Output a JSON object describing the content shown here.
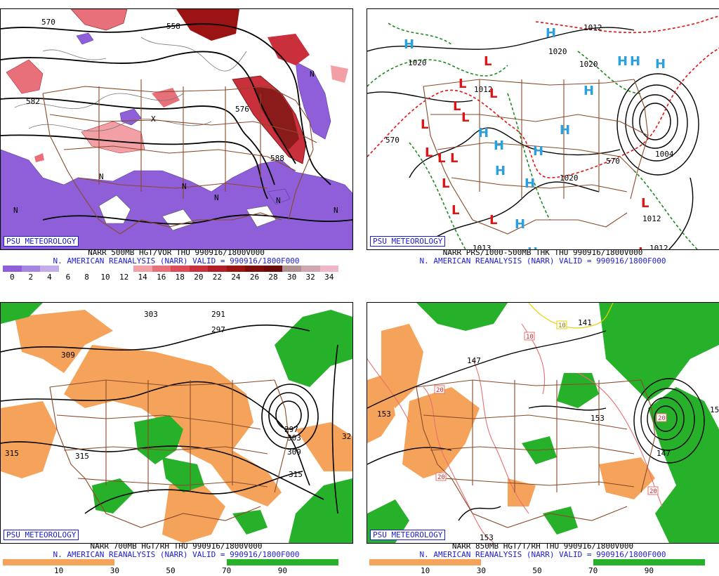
{
  "credit": "PSU METEOROLOGY",
  "colors": {
    "vort_low": "#9b6cde",
    "vort_high": "#e8707a",
    "vort_dark": "#8b1a1a",
    "rh_dry": "#f5a35a",
    "rh_moist": "#27b12b",
    "high_symbol": "#2aa0e0",
    "low_symbol": "#e01414",
    "thickness_warm": "#e01414",
    "thickness_cold": "#1f8a1f",
    "height_contour": "#000000",
    "border": "#8a4a2a"
  },
  "panels": [
    {
      "line1": "NARR 500MB HGT/VOR THU 990916/1800V000",
      "line2": "N. AMERICAN REANALYSIS (NARR) VALID = 990916/1800F000",
      "scale": {
        "ticks": [
          "0",
          "2",
          "4",
          "6",
          "8",
          "10",
          "12",
          "14",
          "16",
          "18",
          "20",
          "22",
          "24",
          "26",
          "28",
          "30",
          "32",
          "34"
        ],
        "colors": [
          "#8e5fd8",
          "#a684e2",
          "#c2ade9",
          "#ffffff",
          "#ffffff",
          "#ffffff",
          "#ffffff",
          "#f2a0a6",
          "#e8707a",
          "#de4b57",
          "#c9303c",
          "#b21e28",
          "#9a1414",
          "#7e0e0e",
          "#6a0a0a",
          "#b09090",
          "#cfa5b0",
          "#f0b7c8"
        ]
      },
      "labels": [
        "570",
        "558",
        "582",
        "576",
        "588",
        "N",
        "N",
        "N",
        "N",
        "N",
        "N",
        "N",
        "X"
      ]
    },
    {
      "line1": "NARR PRS/1000-500MB THK THU 990916/1800V000",
      "line2": "N. AMERICAN REANALYSIS (NARR) VALID = 990916/1800F000",
      "highs_label": "H",
      "lows_label": "L",
      "labels": [
        "1012",
        "1020",
        "1020",
        "1012",
        "1020",
        "1020",
        "1004",
        "1012",
        "1012",
        "1013",
        "570",
        "570"
      ]
    },
    {
      "line1": "NARR 700MB HGT/RH THU 990916/1800V000",
      "line2": "N. AMERICAN REANALYSIS (NARR) VALID = 990916/1800F000",
      "scale": {
        "ticks": [
          "10",
          "30",
          "50",
          "70",
          "90"
        ],
        "colors": [
          "#f5a35a",
          "#f5a35a",
          "#ffffff",
          "#ffffff",
          "#27b12b",
          "#27b12b"
        ]
      },
      "labels": [
        "303",
        "291",
        "297",
        "309",
        "315",
        "315",
        "297",
        "303",
        "309",
        "315",
        "32"
      ]
    },
    {
      "line1": "NARR 850MB HGT/T/RH THU 990916/1800V000",
      "line2": "N. AMERICAN REANALYSIS (NARR) VALID = 990916/1800F000",
      "scale": {
        "ticks": [
          "10",
          "30",
          "50",
          "70",
          "90"
        ],
        "colors": [
          "#f5a35a",
          "#f5a35a",
          "#ffffff",
          "#ffffff",
          "#27b12b",
          "#27b12b"
        ]
      },
      "labels": [
        "141",
        "147",
        "153",
        "153",
        "147",
        "153",
        "15",
        "10",
        "10",
        "20",
        "20",
        "20",
        "20"
      ]
    }
  ]
}
